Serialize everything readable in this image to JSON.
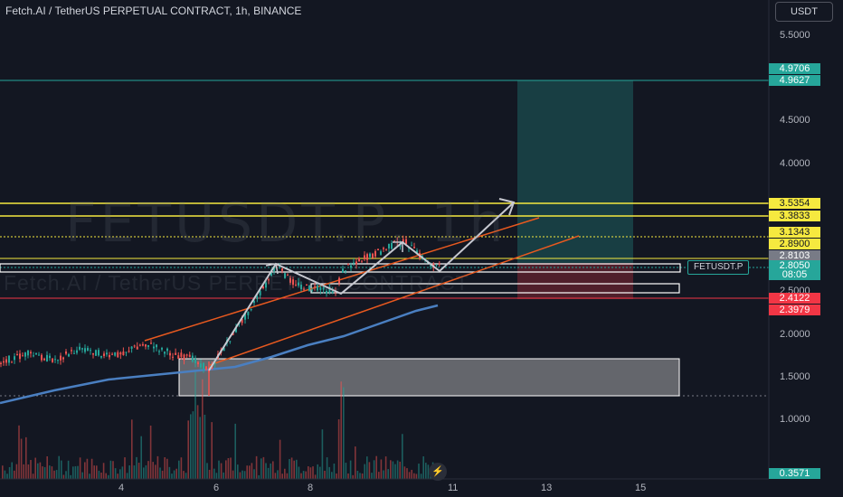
{
  "title": "Fetch.AI / TetherUS PERPETUAL CONTRACT, 1h, BINANCE",
  "watermark": {
    "symbol": "FETUSDT.P, 1h",
    "description": "Fetch.AI / TetherUS PERPETUAL CONTRACT"
  },
  "currency": "USDT",
  "symbol_tag": "FETUSDT.P",
  "icons": {
    "currency_selector": "dropdown",
    "bolt": "lightning-icon"
  },
  "y_axis": {
    "ticks": [
      "5.5000",
      "4.5000",
      "4.0000",
      "2.5000",
      "2.0000",
      "1.5000",
      "1.0000"
    ]
  },
  "x_axis": {
    "ticks": [
      "4",
      "6",
      "8",
      "11",
      "13",
      "15"
    ]
  },
  "price_labels": [
    {
      "value": "4.9706",
      "bg": "#26a69a",
      "fg": "#ffffff"
    },
    {
      "value": "4.9627",
      "bg": "#26a69a",
      "fg": "#ffffff"
    },
    {
      "value": "3.5354",
      "bg": "#f6e93f",
      "fg": "#131722"
    },
    {
      "value": "3.3833",
      "bg": "#f6e93f",
      "fg": "#131722"
    },
    {
      "value": "3.1343",
      "bg": "#f6e93f",
      "fg": "#131722"
    },
    {
      "value": "2.8900",
      "bg": "#f6e93f",
      "fg": "#131722"
    },
    {
      "value": "2.8103",
      "bg": "#787b86",
      "fg": "#ffffff"
    },
    {
      "value": "2.8050",
      "bg": "#26a69a",
      "fg": "#ffffff"
    },
    {
      "value": "08:05",
      "bg": "#26a69a",
      "fg": "#ffffff"
    },
    {
      "value": "2.4122",
      "bg": "#f23645",
      "fg": "#ffffff"
    },
    {
      "value": "2.3979",
      "bg": "#f23645",
      "fg": "#ffffff"
    },
    {
      "value": "0.3571",
      "bg": "#26a69a",
      "fg": "#ffffff"
    }
  ],
  "colors": {
    "background": "#131722",
    "bull": "#26a69a",
    "bear": "#ef5350",
    "ma": "#4a7fc1",
    "channel": "#e8591f",
    "level": "#f6e93f",
    "arrow": "#c7c9d1"
  }
}
